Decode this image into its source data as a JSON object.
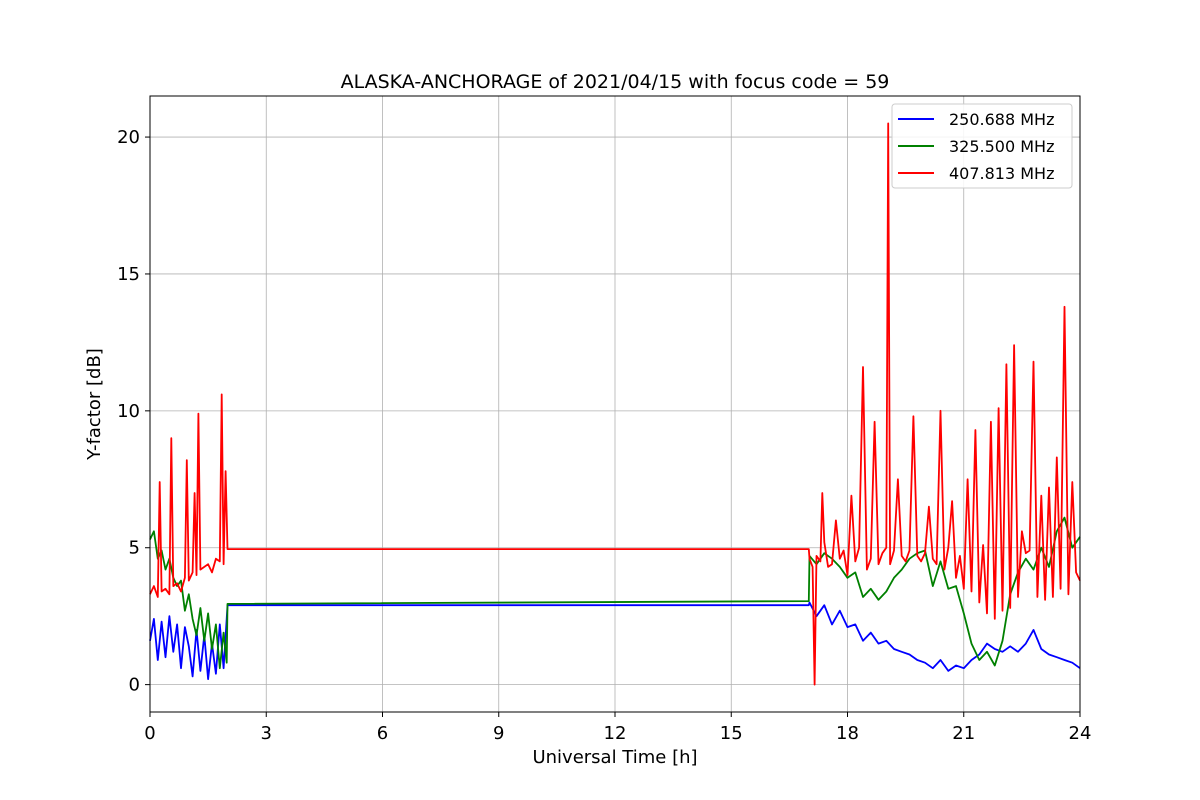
{
  "chart_data": {
    "type": "line",
    "title": "ALASKA-ANCHORAGE of 2021/04/15 with focus code = 59",
    "xlabel": "Universal Time [h]",
    "ylabel": "Y-factor [dB]",
    "xlim": [
      0,
      24
    ],
    "ylim": [
      -1,
      21.5
    ],
    "xticks": [
      0,
      3,
      6,
      9,
      12,
      15,
      18,
      21,
      24
    ],
    "yticks": [
      0,
      5,
      10,
      15,
      20
    ],
    "grid": true,
    "legend_position": "top-right",
    "series": [
      {
        "name": "250.688 MHz",
        "color": "#0000ff",
        "x": [
          0,
          0.1,
          0.2,
          0.3,
          0.4,
          0.5,
          0.6,
          0.7,
          0.8,
          0.9,
          1.0,
          1.1,
          1.2,
          1.3,
          1.4,
          1.5,
          1.6,
          1.7,
          1.8,
          1.9,
          1.98,
          2.0,
          17.0,
          17.02,
          17.2,
          17.4,
          17.6,
          17.8,
          18.0,
          18.2,
          18.4,
          18.6,
          18.8,
          19.0,
          19.2,
          19.4,
          19.6,
          19.8,
          20.0,
          20.2,
          20.4,
          20.6,
          20.8,
          21.0,
          21.2,
          21.4,
          21.6,
          21.8,
          22.0,
          22.2,
          22.4,
          22.6,
          22.8,
          23.0,
          23.2,
          23.4,
          23.6,
          23.8,
          24.0
        ],
        "y": [
          1.6,
          2.4,
          0.9,
          2.3,
          1.0,
          2.5,
          1.2,
          2.2,
          0.6,
          2.1,
          1.4,
          0.3,
          2.0,
          0.5,
          1.8,
          0.2,
          1.5,
          0.4,
          2.2,
          0.6,
          2.4,
          2.9,
          2.9,
          3.0,
          2.5,
          2.9,
          2.2,
          2.7,
          2.1,
          2.2,
          1.6,
          1.9,
          1.5,
          1.6,
          1.3,
          1.2,
          1.1,
          0.9,
          0.8,
          0.6,
          0.9,
          0.5,
          0.7,
          0.6,
          0.9,
          1.1,
          1.5,
          1.3,
          1.2,
          1.4,
          1.2,
          1.5,
          2.0,
          1.3,
          1.1,
          1.0,
          0.9,
          0.8,
          0.6
        ]
      },
      {
        "name": "325.500 MHz",
        "color": "#008000",
        "x": [
          0,
          0.1,
          0.2,
          0.3,
          0.4,
          0.5,
          0.6,
          0.7,
          0.8,
          0.9,
          1.0,
          1.1,
          1.2,
          1.3,
          1.4,
          1.5,
          1.6,
          1.7,
          1.8,
          1.9,
          1.98,
          2.0,
          17.0,
          17.02,
          17.2,
          17.4,
          17.6,
          17.8,
          18.0,
          18.2,
          18.4,
          18.6,
          18.8,
          19.0,
          19.2,
          19.4,
          19.6,
          19.8,
          20.0,
          20.2,
          20.4,
          20.6,
          20.8,
          21.0,
          21.2,
          21.4,
          21.6,
          21.8,
          22.0,
          22.2,
          22.4,
          22.6,
          22.8,
          23.0,
          23.2,
          23.4,
          23.6,
          23.8,
          24.0
        ],
        "y": [
          5.3,
          5.6,
          4.6,
          4.9,
          4.2,
          4.6,
          3.9,
          3.6,
          3.8,
          2.7,
          3.3,
          2.4,
          1.8,
          2.8,
          1.6,
          2.6,
          1.3,
          2.2,
          0.6,
          1.9,
          0.8,
          2.95,
          3.05,
          4.7,
          4.4,
          4.8,
          4.6,
          4.3,
          3.9,
          4.1,
          3.2,
          3.5,
          3.1,
          3.4,
          3.9,
          4.2,
          4.6,
          4.8,
          4.9,
          3.6,
          4.5,
          3.5,
          3.6,
          2.6,
          1.5,
          0.9,
          1.2,
          0.7,
          1.6,
          3.3,
          4.1,
          4.6,
          4.2,
          5.0,
          4.3,
          5.6,
          6.1,
          5.0,
          5.4
        ]
      },
      {
        "name": "407.813 MHz",
        "color": "#ff0000",
        "x": [
          0,
          0.1,
          0.2,
          0.25,
          0.3,
          0.4,
          0.5,
          0.55,
          0.6,
          0.7,
          0.8,
          0.9,
          0.95,
          1.0,
          1.1,
          1.15,
          1.2,
          1.25,
          1.3,
          1.4,
          1.5,
          1.6,
          1.7,
          1.8,
          1.85,
          1.9,
          1.95,
          2.0,
          17.0,
          17.02,
          17.1,
          17.15,
          17.2,
          17.3,
          17.35,
          17.4,
          17.5,
          17.6,
          17.7,
          17.8,
          17.9,
          18.0,
          18.1,
          18.2,
          18.3,
          18.4,
          18.5,
          18.6,
          18.7,
          18.8,
          18.9,
          19.0,
          19.05,
          19.1,
          19.2,
          19.3,
          19.4,
          19.5,
          19.6,
          19.7,
          19.8,
          19.9,
          20.0,
          20.1,
          20.2,
          20.3,
          20.4,
          20.5,
          20.6,
          20.7,
          20.8,
          20.9,
          21.0,
          21.1,
          21.2,
          21.3,
          21.4,
          21.5,
          21.6,
          21.7,
          21.8,
          21.9,
          22.0,
          22.1,
          22.2,
          22.3,
          22.4,
          22.5,
          22.6,
          22.7,
          22.8,
          22.9,
          23.0,
          23.1,
          23.2,
          23.3,
          23.4,
          23.5,
          23.6,
          23.7,
          23.8,
          23.9,
          24.0
        ],
        "y": [
          3.3,
          3.6,
          3.2,
          7.4,
          3.4,
          3.5,
          3.3,
          9.0,
          3.6,
          3.7,
          3.4,
          3.9,
          8.2,
          3.8,
          4.1,
          7.0,
          4.0,
          9.9,
          4.2,
          4.3,
          4.4,
          4.1,
          4.6,
          4.5,
          10.6,
          4.4,
          7.8,
          4.95,
          4.95,
          4.6,
          4.3,
          0.0,
          4.7,
          4.5,
          7.0,
          5.2,
          4.3,
          4.4,
          6.0,
          4.6,
          4.9,
          4.0,
          6.9,
          4.5,
          5.0,
          11.6,
          4.2,
          4.6,
          9.6,
          4.4,
          4.8,
          5.0,
          20.5,
          4.4,
          4.9,
          7.5,
          4.7,
          4.5,
          4.9,
          9.8,
          4.7,
          4.5,
          4.8,
          6.5,
          4.6,
          4.4,
          10.0,
          4.2,
          5.0,
          6.7,
          3.9,
          4.7,
          3.5,
          7.5,
          3.4,
          9.3,
          3.0,
          5.1,
          2.6,
          9.6,
          2.4,
          10.1,
          2.7,
          11.7,
          2.8,
          12.4,
          3.2,
          5.6,
          4.8,
          4.9,
          11.8,
          3.2,
          6.9,
          3.1,
          7.2,
          3.2,
          8.3,
          3.5,
          13.8,
          3.3,
          7.4,
          4.1,
          3.8
        ]
      }
    ]
  }
}
